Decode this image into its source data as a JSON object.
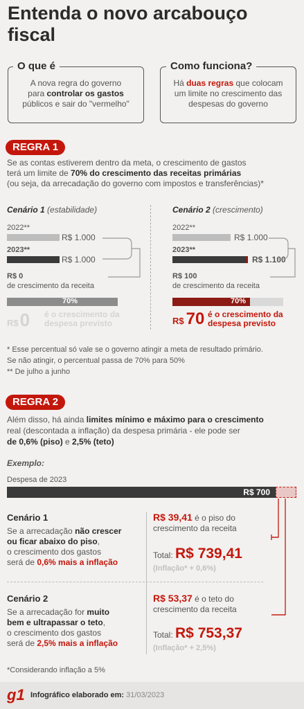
{
  "title": "Entenda o novo arcabouço fiscal",
  "box1": {
    "head": "O que é",
    "t1": "A nova regra do governo",
    "t2a": "para ",
    "t2b": "controlar os gastos",
    "t3": "públicos e sair do \"vermelho\""
  },
  "box2": {
    "head": "Como funciona?",
    "t1a": "Há ",
    "t1b": "duas regras",
    "t1c": " que colocam",
    "t2": "um limite no crescimento das",
    "t3": "despesas do governo"
  },
  "regra1": {
    "label": "REGRA 1",
    "p1": "Se as contas estiverem dentro da meta, o crescimento de gastos",
    "p2a": "terá um limite de ",
    "p2b": "70% do crescimento das receitas primárias",
    "p3": "(ou seja, da arrecadação do governo com impostos e transferências)*",
    "c1": {
      "title": "Cenário 1",
      "sub": " (estabilidade)",
      "y1": "2022**",
      "v1": "R$ 1.000",
      "y2": "2023**",
      "v2": "R$ 1.000",
      "growth": "R$ 0",
      "growth_label": "de crescimento da receita",
      "pct": "70%",
      "big_prefix": "R$",
      "big": "0",
      "big_label1": "é o crescimento da",
      "big_label2": "despesa previsto"
    },
    "c2": {
      "title": "Cenário 2",
      "sub": " (crescimento)",
      "y1": "2022**",
      "v1": "R$ 1.000",
      "y2": "2023**",
      "v2": "R$ 1.100",
      "growth": "R$ 100",
      "growth_label": "de crescimento da receita",
      "pct": "70%",
      "big_prefix": "R$",
      "big": "70",
      "big_label1": "é o crescimento da",
      "big_label2": "despesa previsto"
    },
    "note1": "* Esse percentual só vale se o governo atingir a meta de resultado primário.",
    "note2": "Se não atingir, o percentual passa de 70% para 50%",
    "note3": "** De julho a junho"
  },
  "regra2": {
    "label": "REGRA 2",
    "p1a": "Além disso, há ainda ",
    "p1b": "limites mínimo e máximo para o crescimento",
    "p2": "real (descontada a inflação) da despesa primária - ele pode ser",
    "p3a": "de 0,6% (piso)",
    "p3b": " e ",
    "p3c": "2,5% (teto)",
    "exemplo": "Exemplo:",
    "despesa_label": "Despesa de 2023",
    "despesa_value": "R$ 700",
    "c1": {
      "title": "Cenário 1",
      "l1": "Se a arrecadação ",
      "l1b": "não crescer",
      "l2": "ou ficar abaixo do piso",
      "l2b": ",",
      "l3": "o crescimento dos gastos",
      "l4a": "será de ",
      "l4b": "0,6% mais a inflação",
      "amt": "R$ 39,41",
      "amt_label1": " é o piso do",
      "amt_label2": "crescimento da receita",
      "total_label": "Total: ",
      "total": "R$ 739,41",
      "total_note": "(Inflação* + 0,6%)"
    },
    "c2": {
      "title": "Cenário 2",
      "l1": "Se a arrecadação for ",
      "l1b": "muito",
      "l2": "bem e ultrapassar o teto",
      "l2b": ",",
      "l3": "o crescimento dos gastos",
      "l4a": "será de ",
      "l4b": "2,5% mais a inflação",
      "amt": "R$ 53,37",
      "amt_label1": " é o teto do",
      "amt_label2": "crescimento da receita",
      "total_label": "Total: ",
      "total": "R$ 753,37",
      "total_note": "(Inflação* + 2,5%)"
    },
    "note": "*Considerando inflação a 5%"
  },
  "footer": {
    "logo": "g1",
    "label": "Infográfico elaborado em:",
    "date": " 31/03/2023"
  }
}
